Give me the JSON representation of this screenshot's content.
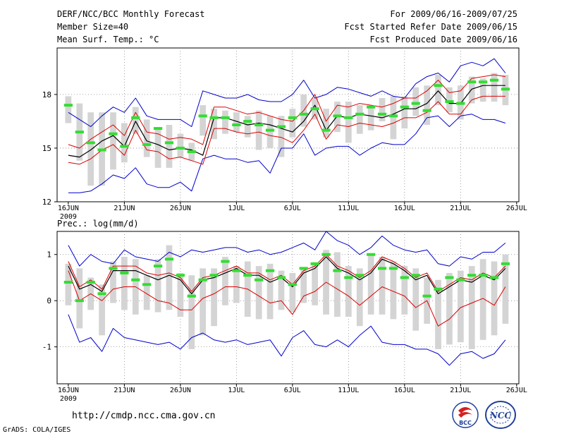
{
  "header": {
    "title": "DERF/NCC/BCC Monthly Forecast",
    "member_size": "Member Size=40",
    "variable": "Mean Surf. Temp.: °C",
    "period": "For 2009/06/16-2009/07/25",
    "started": "Fcst Started Refer Date 2009/06/15",
    "produced": "Fcst Produced Date 2009/06/16"
  },
  "footer": {
    "url": "http://cmdp.ncc.cma.gov.cn",
    "grads": "GrADS: COLA/IGES",
    "logo_bcc": "BCC",
    "logo_ncc": "NCC"
  },
  "colors": {
    "box": "#d4d4d4",
    "median": "#33dd33",
    "mean": "#000000",
    "inner": "#dd0000",
    "outer": "#0000cc",
    "frame": "#000000"
  },
  "chart_data": [
    {
      "type": "line",
      "title": "Mean Surf. Temp.: °C",
      "xlabel": "2009",
      "ylabel": "°C",
      "ylim": [
        12,
        20.6
      ],
      "y_ticks": [
        12,
        15,
        18
      ],
      "y_tick_labels": [
        "12",
        "15",
        "18"
      ],
      "x_tick_labels": [
        "16JUN",
        "21JUN",
        "26JUN",
        "1JUL",
        "6JUL",
        "11JUL",
        "16JUL",
        "21JUL",
        "26JUL"
      ],
      "x_tick_days": [
        1,
        6,
        11,
        16,
        21,
        26,
        31,
        36,
        41
      ],
      "days": [
        1,
        2,
        3,
        4,
        5,
        6,
        7,
        8,
        9,
        10,
        11,
        12,
        13,
        14,
        15,
        16,
        17,
        18,
        19,
        20,
        21,
        22,
        23,
        24,
        25,
        26,
        27,
        28,
        29,
        30,
        31,
        32,
        33,
        34,
        35,
        36,
        37,
        38,
        39,
        40
      ],
      "series": [
        {
          "name": "ensemble mean",
          "values": [
            14.6,
            14.5,
            14.9,
            15.4,
            15.7,
            15.1,
            16.5,
            15.4,
            15.2,
            14.9,
            15.0,
            14.9,
            14.6,
            16.7,
            16.7,
            16.5,
            16.3,
            16.4,
            16.3,
            16.1,
            15.9,
            16.5,
            17.4,
            16.0,
            16.8,
            16.7,
            16.9,
            16.8,
            16.7,
            16.9,
            17.2,
            17.2,
            17.5,
            18.2,
            17.5,
            17.5,
            18.3,
            18.5,
            18.5,
            18.5
          ]
        },
        {
          "name": "upper spread",
          "values": [
            15.2,
            15.0,
            15.5,
            15.9,
            16.3,
            15.7,
            17.0,
            15.9,
            15.8,
            15.5,
            15.6,
            15.5,
            15.2,
            17.3,
            17.3,
            17.1,
            16.9,
            17.0,
            16.8,
            16.6,
            16.5,
            17.1,
            18.0,
            16.5,
            17.4,
            17.3,
            17.5,
            17.4,
            17.3,
            17.5,
            17.8,
            17.8,
            18.2,
            18.8,
            18.1,
            18.2,
            18.9,
            19.0,
            19.1,
            19.0
          ]
        },
        {
          "name": "lower spread",
          "values": [
            14.2,
            14.1,
            14.4,
            14.9,
            15.2,
            14.6,
            16.0,
            14.9,
            14.8,
            14.4,
            14.5,
            14.3,
            14.1,
            16.1,
            16.1,
            15.9,
            15.8,
            15.9,
            15.7,
            15.6,
            15.3,
            16.0,
            16.9,
            15.5,
            16.3,
            16.2,
            16.4,
            16.3,
            16.2,
            16.4,
            16.7,
            16.7,
            17.0,
            17.6,
            16.9,
            16.9,
            17.7,
            17.9,
            17.9,
            17.9
          ]
        },
        {
          "name": "ensemble max",
          "values": [
            17.0,
            16.6,
            16.2,
            16.8,
            17.3,
            17.0,
            17.8,
            16.8,
            16.6,
            16.6,
            16.6,
            16.2,
            18.2,
            18.0,
            17.8,
            17.8,
            18.0,
            17.7,
            17.6,
            17.6,
            18.0,
            18.8,
            17.8,
            18.0,
            18.4,
            18.3,
            18.1,
            17.9,
            18.2,
            17.9,
            17.8,
            18.6,
            19.0,
            19.2,
            18.7,
            19.6,
            19.8,
            19.6,
            20.0,
            19.2
          ]
        },
        {
          "name": "ensemble min",
          "values": [
            12.5,
            12.5,
            12.6,
            13.0,
            13.5,
            13.3,
            13.9,
            13.0,
            12.8,
            12.8,
            13.1,
            12.6,
            14.4,
            14.6,
            14.4,
            14.4,
            14.2,
            14.3,
            13.6,
            15.0,
            15.0,
            15.8,
            14.6,
            15.0,
            15.1,
            15.1,
            14.6,
            15.0,
            15.3,
            15.2,
            15.2,
            15.8,
            16.7,
            16.8,
            16.2,
            16.8,
            16.9,
            16.6,
            16.6,
            16.4
          ]
        },
        {
          "name": "median",
          "values": [
            17.4,
            15.9,
            15.3,
            14.9,
            15.8,
            15.1,
            16.7,
            15.2,
            16.1,
            15.3,
            15.0,
            14.8,
            16.8,
            16.7,
            16.7,
            16.3,
            16.5,
            16.3,
            16.0,
            16.2,
            16.7,
            16.9,
            17.2,
            16.0,
            16.8,
            16.7,
            16.9,
            17.3,
            16.9,
            16.8,
            17.3,
            17.5,
            17.1,
            18.5,
            17.6,
            17.5,
            18.7,
            18.7,
            18.8,
            18.3
          ]
        },
        {
          "name": "box top",
          "values": [
            17.9,
            17.5,
            17.0,
            17.0,
            17.0,
            16.4,
            17.3,
            16.6,
            16.1,
            16.3,
            15.8,
            15.3,
            17.4,
            17.2,
            17.1,
            17.0,
            16.8,
            17.1,
            16.8,
            16.8,
            17.2,
            18.0,
            17.8,
            17.2,
            17.6,
            17.6,
            17.4,
            17.3,
            17.8,
            17.9,
            17.9,
            18.4,
            18.5,
            19.1,
            18.4,
            18.5,
            19.0,
            18.9,
            19.2,
            19.1
          ]
        },
        {
          "name": "box bottom",
          "values": [
            16.4,
            14.3,
            12.9,
            12.9,
            13.8,
            14.2,
            15.8,
            14.5,
            13.9,
            13.9,
            14.5,
            14.3,
            15.7,
            15.5,
            15.8,
            15.9,
            15.6,
            14.9,
            15.0,
            14.5,
            15.6,
            16.2,
            16.6,
            15.6,
            15.9,
            15.3,
            15.8,
            16.0,
            16.5,
            15.5,
            16.1,
            16.8,
            16.3,
            17.4,
            17.0,
            16.6,
            17.5,
            17.6,
            17.6,
            17.4
          ]
        }
      ]
    },
    {
      "type": "line",
      "title": "Prec.: log(mm/d)",
      "xlabel": "2009",
      "ylabel": "log(mm/d)",
      "ylim": [
        -1.8,
        1.5
      ],
      "y_ticks": [
        -1,
        0,
        1
      ],
      "y_tick_labels": [
        "-1",
        "0",
        "1"
      ],
      "x_tick_labels": [
        "16JUN",
        "21JUN",
        "26JUN",
        "1JUL",
        "6JUL",
        "11JUL",
        "16JUL",
        "21JUL",
        "26JUL"
      ],
      "x_tick_days": [
        1,
        6,
        11,
        16,
        21,
        26,
        31,
        36,
        41
      ],
      "days": [
        1,
        2,
        3,
        4,
        5,
        6,
        7,
        8,
        9,
        10,
        11,
        12,
        13,
        14,
        15,
        16,
        17,
        18,
        19,
        20,
        21,
        22,
        23,
        24,
        25,
        26,
        27,
        28,
        29,
        30,
        31,
        32,
        33,
        34,
        35,
        36,
        37,
        38,
        39,
        40
      ],
      "series": [
        {
          "name": "ensemble mean",
          "values": [
            0.75,
            0.25,
            0.35,
            0.2,
            0.65,
            0.65,
            0.65,
            0.55,
            0.45,
            0.55,
            0.45,
            0.15,
            0.45,
            0.5,
            0.6,
            0.7,
            0.55,
            0.55,
            0.4,
            0.5,
            0.3,
            0.6,
            0.7,
            0.95,
            0.7,
            0.6,
            0.45,
            0.6,
            0.9,
            0.8,
            0.65,
            0.45,
            0.55,
            0.15,
            0.3,
            0.45,
            0.4,
            0.55,
            0.45,
            0.7
          ]
        },
        {
          "name": "upper spread",
          "values": [
            0.85,
            0.3,
            0.45,
            0.25,
            0.75,
            0.75,
            0.75,
            0.6,
            0.55,
            0.6,
            0.5,
            0.2,
            0.5,
            0.55,
            0.65,
            0.75,
            0.6,
            0.6,
            0.45,
            0.55,
            0.35,
            0.65,
            0.75,
            1.0,
            0.75,
            0.65,
            0.5,
            0.65,
            0.95,
            0.85,
            0.7,
            0.5,
            0.6,
            0.2,
            0.35,
            0.5,
            0.45,
            0.6,
            0.5,
            0.75
          ]
        },
        {
          "name": "lower spread",
          "values": [
            0.65,
            0.0,
            0.15,
            0.0,
            0.25,
            0.3,
            0.3,
            0.15,
            0.0,
            -0.05,
            -0.2,
            -0.2,
            0.05,
            0.15,
            0.3,
            0.3,
            0.25,
            0.1,
            -0.05,
            0.0,
            -0.3,
            0.1,
            0.2,
            0.4,
            0.25,
            0.1,
            -0.1,
            0.1,
            0.3,
            0.2,
            0.1,
            -0.15,
            0.0,
            -0.55,
            -0.4,
            -0.15,
            -0.05,
            0.05,
            -0.1,
            0.3
          ]
        },
        {
          "name": "ensemble max",
          "values": [
            1.2,
            0.75,
            1.0,
            0.85,
            0.8,
            1.1,
            0.95,
            0.9,
            0.85,
            1.05,
            0.95,
            1.1,
            1.05,
            1.1,
            1.15,
            1.15,
            1.05,
            1.1,
            1.0,
            1.05,
            1.15,
            1.25,
            1.1,
            1.5,
            1.3,
            1.2,
            1.0,
            1.15,
            1.4,
            1.2,
            1.1,
            1.05,
            1.1,
            0.8,
            0.75,
            0.95,
            0.9,
            1.05,
            1.05,
            1.25
          ]
        },
        {
          "name": "ensemble min",
          "values": [
            -0.3,
            -0.9,
            -0.8,
            -1.1,
            -0.6,
            -0.8,
            -0.85,
            -0.9,
            -0.95,
            -0.9,
            -1.05,
            -0.8,
            -0.7,
            -0.85,
            -0.9,
            -0.85,
            -0.95,
            -0.9,
            -0.85,
            -1.2,
            -0.8,
            -0.65,
            -0.95,
            -1.0,
            -0.85,
            -1.0,
            -0.75,
            -0.55,
            -0.9,
            -0.95,
            -0.95,
            -1.05,
            -1.05,
            -1.15,
            -1.4,
            -1.15,
            -1.1,
            -1.25,
            -1.15,
            -0.85
          ]
        },
        {
          "name": "median",
          "values": [
            0.4,
            0.0,
            0.4,
            0.15,
            0.7,
            0.6,
            0.45,
            0.35,
            0.75,
            0.9,
            0.55,
            0.1,
            0.45,
            0.55,
            0.85,
            0.65,
            0.55,
            0.45,
            0.65,
            0.5,
            0.35,
            0.7,
            0.8,
            1.0,
            0.65,
            0.5,
            0.55,
            1.0,
            0.7,
            0.7,
            0.5,
            0.55,
            0.1,
            0.25,
            0.5,
            0.45,
            0.55,
            0.55,
            0.5,
            0.8
          ]
        },
        {
          "name": "box top",
          "values": [
            0.8,
            0.7,
            0.5,
            0.35,
            0.85,
            0.95,
            0.9,
            0.55,
            0.9,
            1.2,
            0.6,
            0.55,
            0.7,
            0.7,
            0.95,
            0.75,
            0.85,
            0.75,
            0.8,
            0.65,
            0.6,
            0.7,
            0.8,
            1.1,
            1.05,
            0.75,
            0.7,
            1.0,
            0.95,
            0.85,
            0.75,
            0.7,
            0.5,
            0.45,
            0.6,
            0.65,
            0.75,
            0.9,
            0.85,
            1.0
          ]
        },
        {
          "name": "box bottom",
          "values": [
            -0.1,
            -0.6,
            -0.2,
            -0.75,
            -0.05,
            -0.2,
            -0.3,
            -0.2,
            -0.25,
            -0.2,
            -0.35,
            -1.05,
            -0.75,
            -0.55,
            -0.1,
            -0.05,
            -0.35,
            -0.4,
            -0.4,
            -0.2,
            -0.25,
            -0.05,
            -0.1,
            -0.3,
            -0.35,
            -0.35,
            -0.55,
            -0.3,
            -0.3,
            -0.4,
            -0.3,
            -0.65,
            -0.5,
            -1.05,
            -0.95,
            -0.9,
            -1.05,
            -0.85,
            -0.75,
            -0.5
          ]
        }
      ]
    }
  ]
}
